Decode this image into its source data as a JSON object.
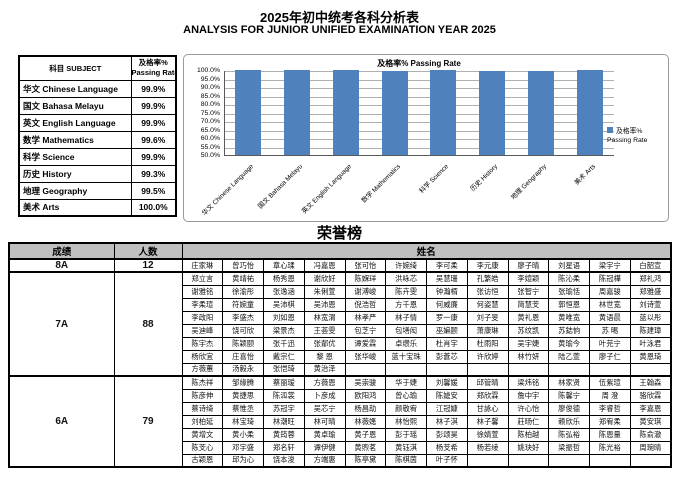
{
  "page": {
    "title_zh": "2025年初中统考各科分析表",
    "title_en": "ANALYSIS FOR JUNIOR UNIFIED EXAMINATION YEAR 2025"
  },
  "subject_table": {
    "header_subject": "科目 SUBJECT",
    "header_rate_line1": "及格率%",
    "header_rate_line2": "Passing Rate",
    "rows": [
      {
        "subject": "华文 Chinese Language",
        "rate": "99.9%"
      },
      {
        "subject": "国文 Bahasa Melayu",
        "rate": "99.9%"
      },
      {
        "subject": "英文 English Language",
        "rate": "99.9%"
      },
      {
        "subject": "数学 Mathematics",
        "rate": "99.6%"
      },
      {
        "subject": "科学 Science",
        "rate": "99.9%"
      },
      {
        "subject": "历史 History",
        "rate": "99.3%"
      },
      {
        "subject": "地理 Geography",
        "rate": "99.5%"
      },
      {
        "subject": "美术 Arts",
        "rate": "100.0%"
      }
    ]
  },
  "chart_data": {
    "type": "bar",
    "title": "及格率% Passing Rate",
    "categories": [
      "华文 Chinese Language",
      "国文 Bahasa Melayu",
      "英文 English Language",
      "数学 Mathematics",
      "科学 Science",
      "历史 History",
      "地理 Geography",
      "美术 Arts"
    ],
    "values": [
      99.9,
      99.9,
      99.9,
      99.6,
      99.9,
      99.3,
      99.5,
      100.0
    ],
    "ylim": [
      50,
      100
    ],
    "ytick_step": 5,
    "ytick_suffix": "%",
    "grid": true,
    "legend": "及格率% Passing Rate",
    "legend_position": "right",
    "bar_color": "#4f81bd"
  },
  "honor_board": {
    "title": "荣誉榜",
    "headers": {
      "grade": "成绩",
      "count": "人数",
      "names": "姓名"
    },
    "columns_per_row": 12,
    "groups": [
      {
        "grade": "8A",
        "count": "12",
        "rows": [
          [
            "庄家琳",
            "曾巧怡",
            "章心瑈",
            "冯嘉恩",
            "张可怡",
            "许婉绮",
            "李可柔",
            "李元康",
            "廖子晴",
            "刘星语",
            "梁宇宁",
            "白韶宣"
          ]
        ]
      },
      {
        "grade": "7A",
        "count": "88",
        "rows": [
          [
            "郑立言",
            "黄靖祐",
            "杨秀恩",
            "谢欣好",
            "陈媬珜",
            "洪咏芯",
            "吴慧珊",
            "孔繁皓",
            "李媗颖",
            "陈沁柔",
            "陈冠樺",
            "郑礼鸿"
          ],
          [
            "谢雅铭",
            "徐渝彤",
            "张逸涵",
            "朱俐萱",
            "谢溥峻",
            "陈卉雯",
            "钟瀚楈",
            "张访恒",
            "张智宁",
            "张瑜恬",
            "周嘉骏",
            "郑雅盛"
          ],
          [
            "李柔瑄",
            "符婉童",
            "吴沛棋",
            "吴沛恩",
            "倪浩哲",
            "方千恩",
            "何威廉",
            "何姿慧",
            "简慧芠",
            "郭恒恩",
            "林世宽",
            "刘诗萱"
          ],
          [
            "李政阳",
            "李盛杰",
            "刘如恩",
            "林宽渭",
            "林孝严",
            "林子情",
            "罗一康",
            "刘子旻",
            "黄礼恩",
            "黄唯宽",
            "黄语晨",
            "蓝以彤"
          ],
          [
            "吴迪峰",
            "饶可欣",
            "梁景杰",
            "王荟雯",
            "包芝宁",
            "包墡闳",
            "巫媥颐",
            "萧康琳",
            "苏纹凯",
            "苏鋕恦",
            "苏 晹",
            "陈建璋"
          ],
          [
            "陈宇杰",
            "陈颖颐",
            "张千迅",
            "张郬优",
            "谭爱霖",
            "卓缵乐",
            "杜肖宇",
            "杜雨阳",
            "吴宇婕",
            "黄瑜今",
            "叶芫宁",
            "叶泳君"
          ],
          [
            "杨欣宜",
            "庄喜怡",
            "戴宗仁",
            "黎 恩",
            "张华峻",
            "蓝十宝珠",
            "彭蒼芯",
            "许欣婷",
            "林竹妍",
            "陆乙萱",
            "廖子仁",
            "黄恩琦"
          ],
          [
            "方薇蕙",
            "汤毅永",
            "张恺琦",
            "黄治泽",
            "",
            "",
            "",
            "",
            "",
            "",
            "",
            ""
          ]
        ]
      },
      {
        "grade": "6A",
        "count": "79",
        "rows": [
          [
            "陈杰祥",
            "邹缘腾",
            "蔡丽瑷",
            "方薇恩",
            "吴崇骏",
            "华于婕",
            "刘馨媛",
            "邱管晴",
            "梁炜铭",
            "林家贤",
            "伍紫瑄",
            "王翰森"
          ],
          [
            "陈彦伸",
            "黄捷思",
            "陈泒裳",
            "卜彦成",
            "欧阳鸿",
            "曾心瑜",
            "陈媫安",
            "郑欣霖",
            "詹中宇",
            "陈馨宁",
            "周 澄",
            "骆欣霖"
          ],
          [
            "蔡诗绮",
            "蔡惟丞",
            "苏冠宇",
            "吴芯宁",
            "杨昌劼",
            "颜敬宥",
            "江冠嫝",
            "甘詠心",
            "许心怡",
            "廖俊德",
            "李睿哲",
            "李嘉恩"
          ],
          [
            "刘柏延",
            "林宝琦",
            "林潮旺",
            "林可晴",
            "林薇嫕",
            "林怡熙",
            "林子淇",
            "林子馨",
            "莊旸仁",
            "赖欣乐",
            "郑宥柔",
            "黄安琪"
          ],
          [
            "黄增文",
            "黄小柔",
            "黄筠蓉",
            "黄卓瑜",
            "黄子恩",
            "彭于瑶",
            "彭颂昊",
            "徐婧萱",
            "陈柏越",
            "陈弘裕",
            "陈恩量",
            "陈俞澈"
          ],
          [
            "陈芠心",
            "邓宇盛",
            "郑名轩",
            "谭伊健",
            "黄煦茗",
            "黄钰淇",
            "杨芠希",
            "杨若绫",
            "姚玦好",
            "梁振哲",
            "陈光裕",
            "周琬晴"
          ],
          [
            "古颖恩",
            "邱为心",
            "饶本浚",
            "方端惠",
            "陈亭黛",
            "陈棋茵",
            "叶子怀",
            "",
            "",
            "",
            "",
            ""
          ]
        ]
      }
    ]
  }
}
